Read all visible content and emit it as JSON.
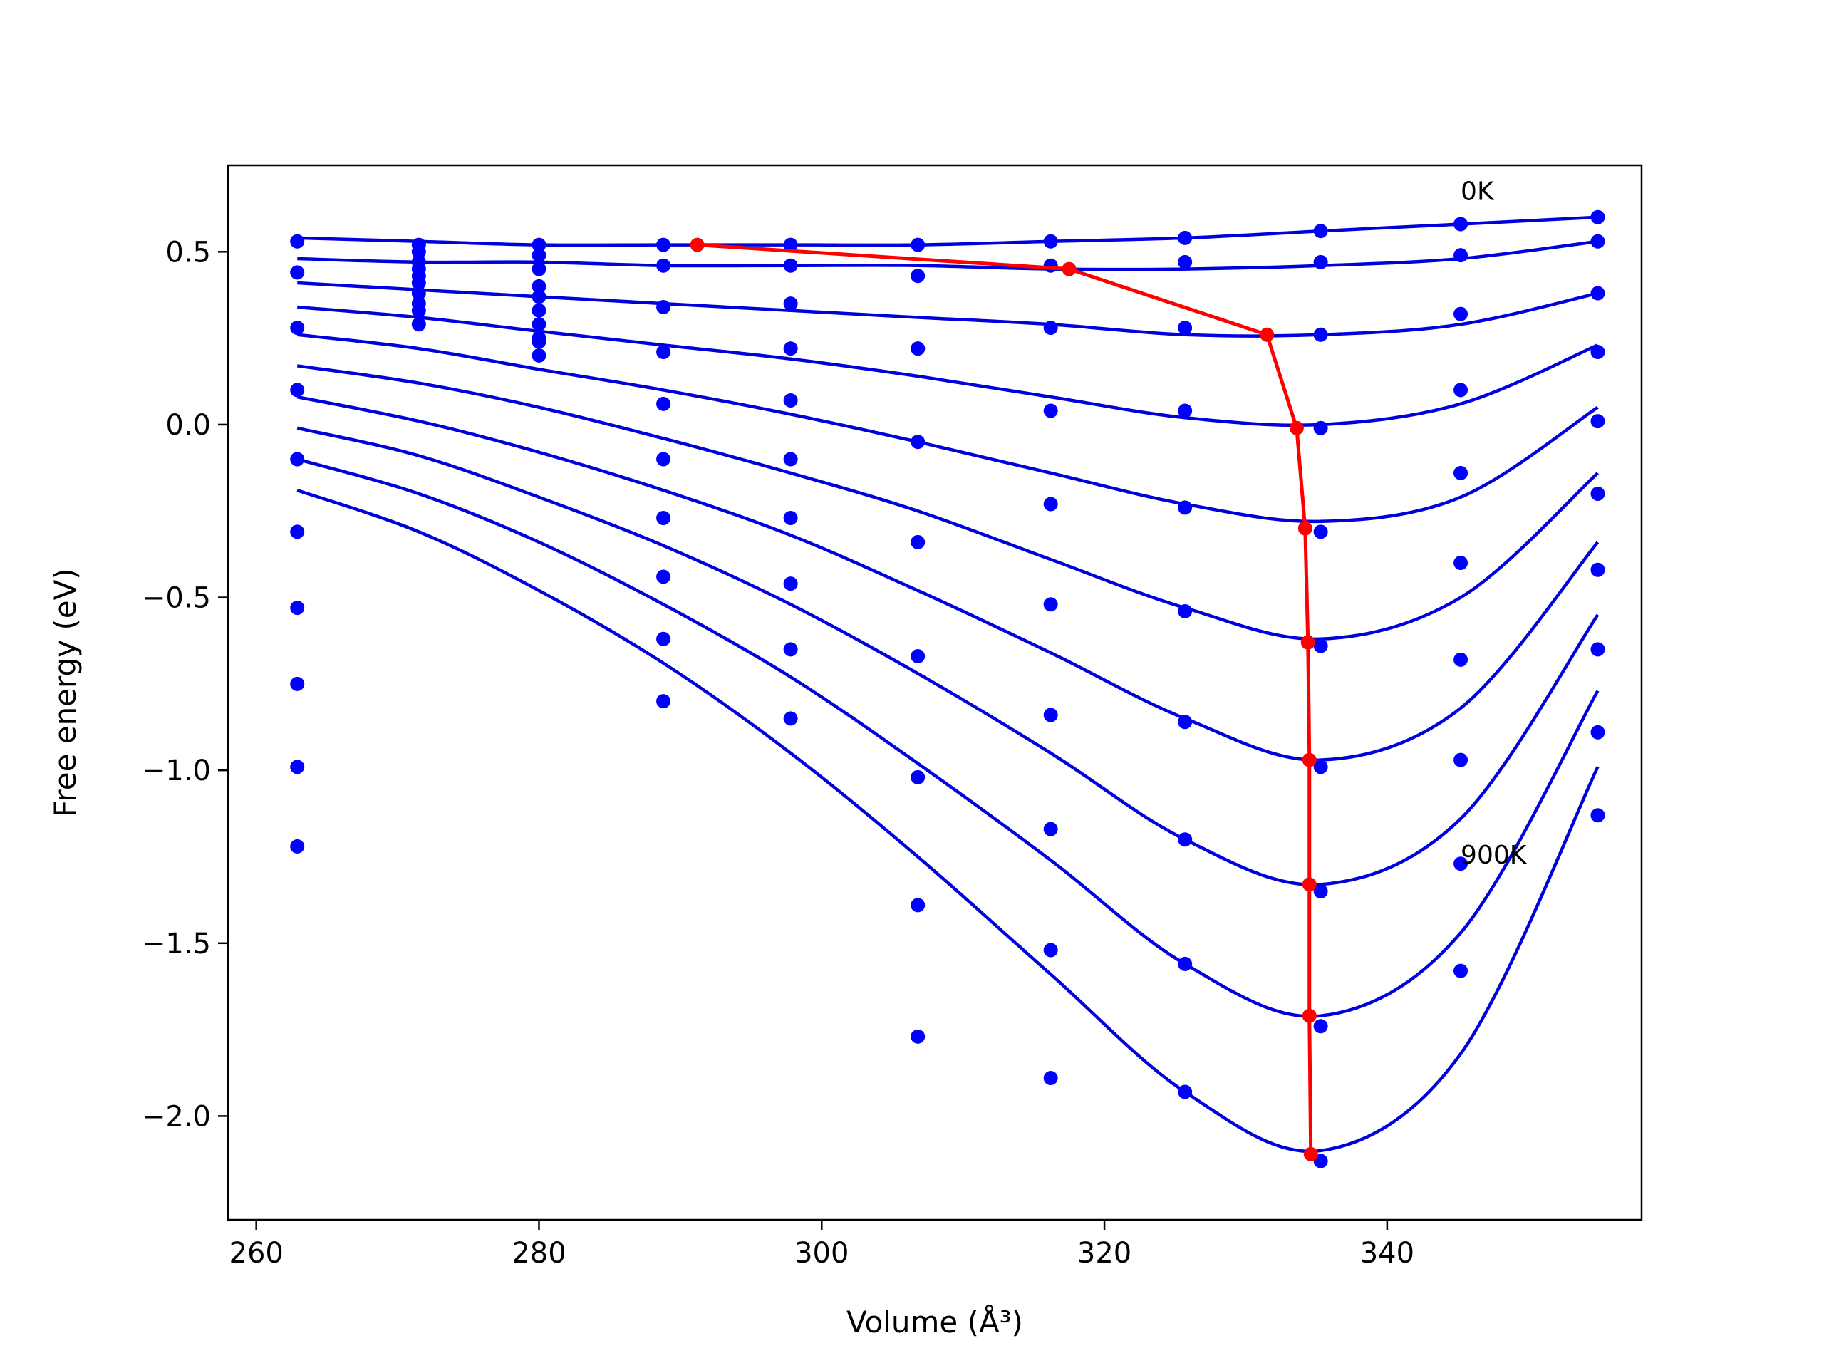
{
  "chart_data": {
    "type": "line",
    "title": "",
    "xlabel": "Volume (Å³)",
    "ylabel": "Free energy (eV)",
    "xlim": [
      258,
      358
    ],
    "ylim": [
      -2.3,
      0.75
    ],
    "xticks": [
      260,
      280,
      300,
      320,
      340
    ],
    "xtick_labels": [
      "260",
      "280",
      "300",
      "320",
      "340"
    ],
    "yticks": [
      0.5,
      0.0,
      -0.5,
      -1.0,
      -1.5,
      -2.0
    ],
    "ytick_labels": [
      "0.5",
      "0.0",
      "−0.5",
      "−1.0",
      "−1.5",
      "−2.0"
    ],
    "grid": false,
    "annotations": [
      {
        "text": "0K",
        "x": 345.2,
        "y": 0.65
      },
      {
        "text": "900K",
        "x": 345.2,
        "y": -1.27
      }
    ],
    "colors": {
      "fit": "#0000dd",
      "points": "#0000ff",
      "minimum_path": "#ff0000"
    },
    "points": {
      "x": [
        262.9,
        271.5,
        280.0,
        288.8,
        297.8,
        306.8,
        316.2,
        325.7,
        335.3,
        345.2,
        354.9
      ],
      "series": [
        {
          "y": [
            0.53,
            0.52,
            0.52,
            0.52,
            0.52,
            0.52,
            0.53,
            0.54,
            0.56,
            0.58,
            0.6
          ]
        },
        {
          "y": [
            0.44,
            0.5,
            0.49,
            0.46,
            0.46,
            0.43,
            0.46,
            0.47,
            0.47,
            0.49,
            0.53
          ]
        },
        {
          "y": [
            0.28,
            0.47,
            0.45,
            0.34,
            0.35,
            0.22,
            0.28,
            0.28,
            0.26,
            0.32,
            0.38
          ]
        },
        {
          "y": [
            0.1,
            0.45,
            0.4,
            0.21,
            0.22,
            0.22,
            0.04,
            0.04,
            -0.01,
            0.1,
            0.21
          ]
        },
        {
          "y": [
            -0.1,
            0.43,
            0.37,
            0.06,
            0.07,
            -0.05,
            -0.23,
            -0.24,
            -0.31,
            -0.14,
            0.01
          ]
        },
        {
          "y": [
            -0.31,
            0.41,
            0.33,
            -0.1,
            -0.1,
            -0.34,
            -0.52,
            -0.54,
            -0.64,
            -0.4,
            -0.2
          ]
        },
        {
          "y": [
            -0.53,
            0.38,
            0.29,
            -0.27,
            -0.27,
            -0.67,
            -0.84,
            -0.86,
            -0.99,
            -0.68,
            -0.42
          ]
        },
        {
          "y": [
            -0.75,
            0.35,
            0.25,
            -0.44,
            -0.46,
            -1.02,
            -1.17,
            -1.2,
            -1.35,
            -0.97,
            -0.65
          ]
        },
        {
          "y": [
            -0.99,
            0.33,
            0.24,
            -0.62,
            -0.65,
            -1.39,
            -1.52,
            -1.56,
            -1.74,
            -1.27,
            -0.89
          ]
        },
        {
          "y": [
            -1.22,
            0.29,
            0.2,
            -0.8,
            -0.85,
            -1.77,
            -1.89,
            -1.93,
            -2.13,
            -1.58,
            -1.13
          ]
        }
      ]
    },
    "fits": [
      {
        "y": [
          0.54,
          0.53,
          0.52,
          0.52,
          0.52,
          0.52,
          0.53,
          0.54,
          0.56,
          0.58,
          0.6
        ]
      },
      {
        "y": [
          0.48,
          0.47,
          0.47,
          0.46,
          0.46,
          0.46,
          0.45,
          0.45,
          0.46,
          0.48,
          0.53
        ]
      },
      {
        "y": [
          0.41,
          0.39,
          0.37,
          0.35,
          0.33,
          0.31,
          0.29,
          0.26,
          0.26,
          0.29,
          0.38
        ]
      },
      {
        "y": [
          0.34,
          0.31,
          0.27,
          0.23,
          0.19,
          0.14,
          0.08,
          0.02,
          0.0,
          0.06,
          0.23
        ]
      },
      {
        "y": [
          0.26,
          0.22,
          0.16,
          0.1,
          0.03,
          -0.05,
          -0.14,
          -0.23,
          -0.28,
          -0.21,
          0.05
        ]
      },
      {
        "y": [
          0.17,
          0.12,
          0.05,
          -0.04,
          -0.14,
          -0.25,
          -0.39,
          -0.53,
          -0.62,
          -0.5,
          -0.14
        ]
      },
      {
        "y": [
          0.08,
          0.01,
          -0.08,
          -0.19,
          -0.32,
          -0.48,
          -0.66,
          -0.85,
          -0.97,
          -0.82,
          -0.34
        ]
      },
      {
        "y": [
          -0.01,
          -0.09,
          -0.21,
          -0.35,
          -0.52,
          -0.72,
          -0.95,
          -1.2,
          -1.33,
          -1.14,
          -0.55
        ]
      },
      {
        "y": [
          -0.1,
          -0.2,
          -0.34,
          -0.52,
          -0.73,
          -0.98,
          -1.26,
          -1.56,
          -1.71,
          -1.47,
          -0.77
        ]
      },
      {
        "y": [
          -0.19,
          -0.31,
          -0.48,
          -0.69,
          -0.95,
          -1.25,
          -1.59,
          -1.93,
          -2.1,
          -1.82,
          -0.99
        ]
      }
    ],
    "minimum_path": {
      "x": [
        291.2,
        317.5,
        331.5,
        333.6,
        334.2,
        334.4,
        334.5,
        334.5,
        334.5,
        334.6
      ],
      "y": [
        0.52,
        0.45,
        0.26,
        -0.01,
        -0.3,
        -0.63,
        -0.97,
        -1.33,
        -1.71,
        -2.11
      ]
    }
  }
}
